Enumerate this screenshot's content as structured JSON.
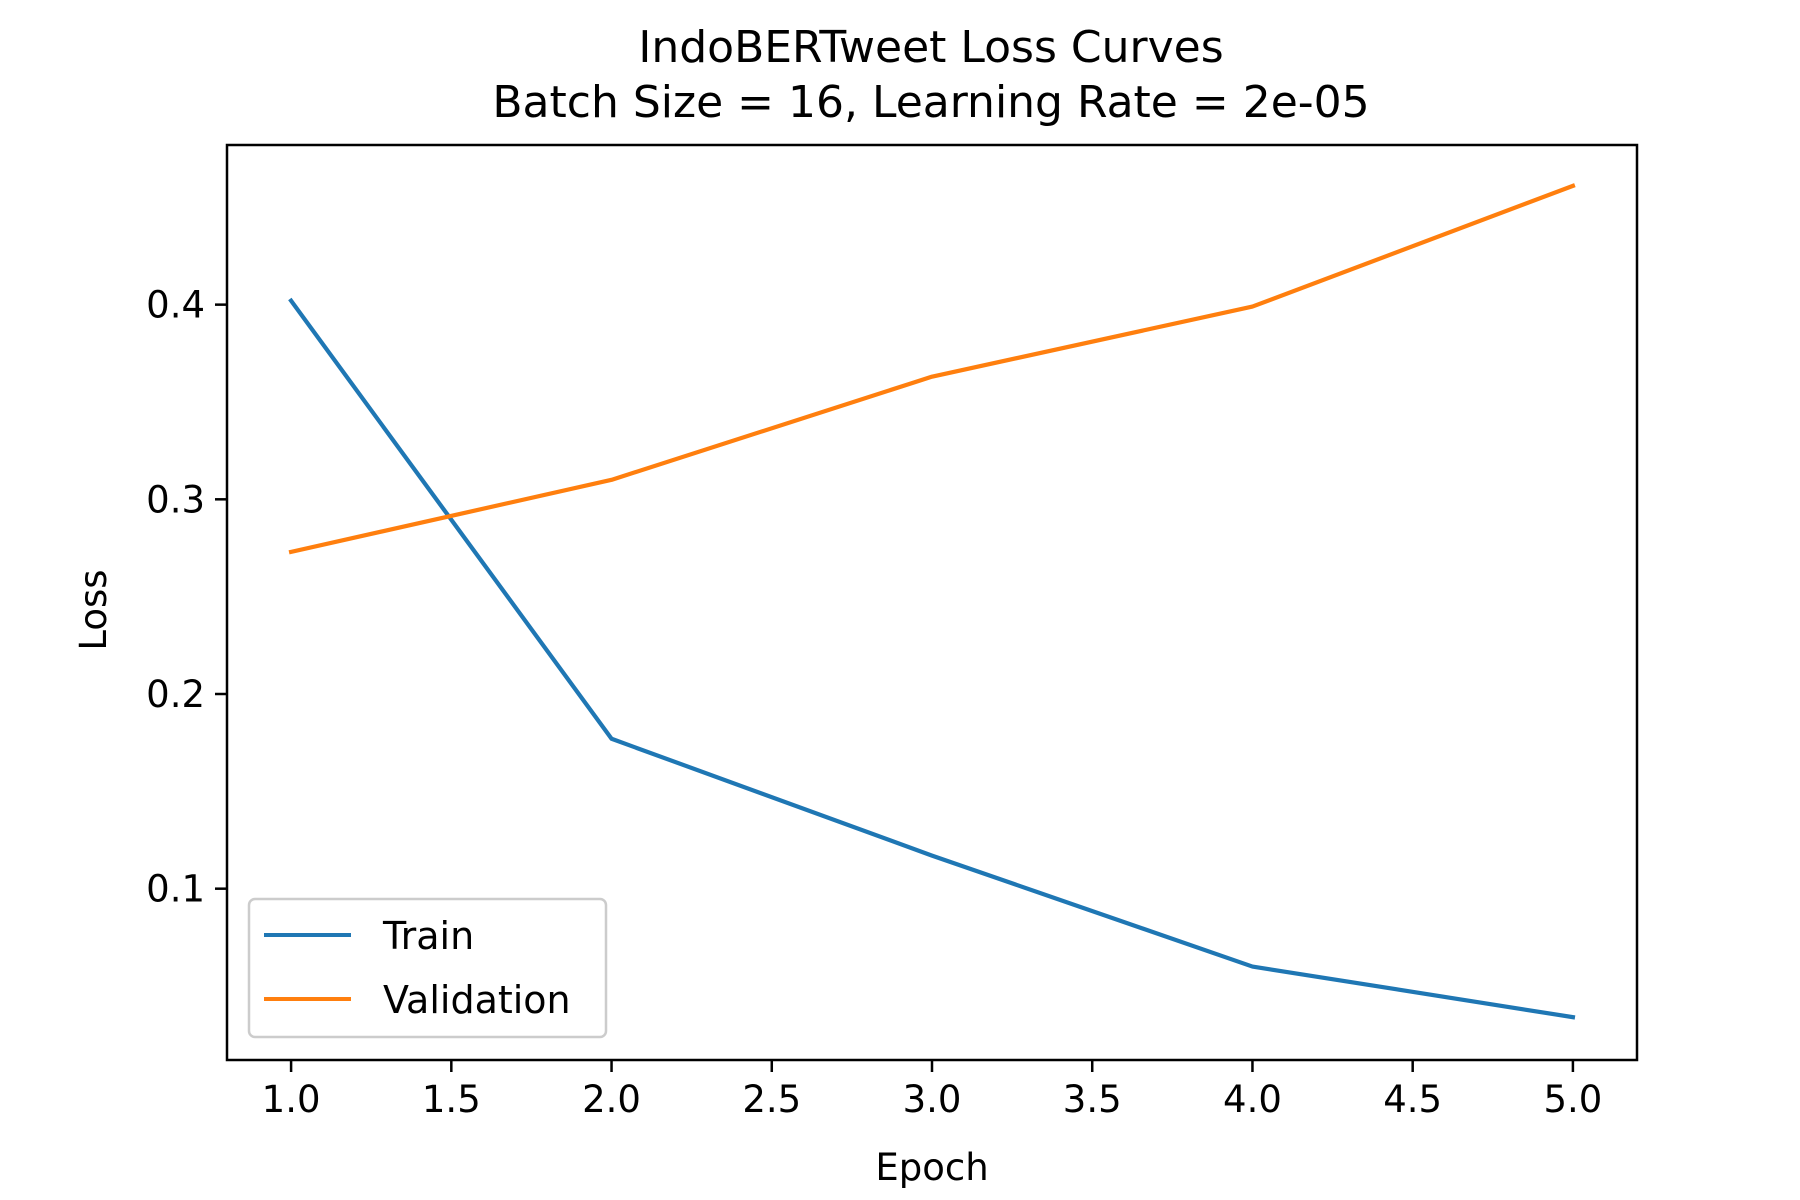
{
  "chart_data": {
    "type": "line",
    "title": "IndoBERTweet Loss Curves",
    "subtitle": "Batch Size = 16, Learning Rate = 2e-05",
    "xlabel": "Epoch",
    "ylabel": "Loss",
    "x": [
      1,
      2,
      3,
      4,
      5
    ],
    "xlim": [
      0.8,
      5.2
    ],
    "ylim": [
      0.012,
      0.482
    ],
    "xticks": [
      1.0,
      1.5,
      2.0,
      2.5,
      3.0,
      3.5,
      4.0,
      4.5,
      5.0
    ],
    "yticks": [
      0.1,
      0.2,
      0.3,
      0.4
    ],
    "grid": false,
    "legend_position": "lower-left",
    "series": [
      {
        "name": "Train",
        "color": "#1f77b4",
        "values": [
          0.402,
          0.177,
          0.117,
          0.06,
          0.034
        ]
      },
      {
        "name": "Validation",
        "color": "#ff7f0e",
        "values": [
          0.273,
          0.31,
          0.363,
          0.399,
          0.461
        ]
      }
    ]
  }
}
